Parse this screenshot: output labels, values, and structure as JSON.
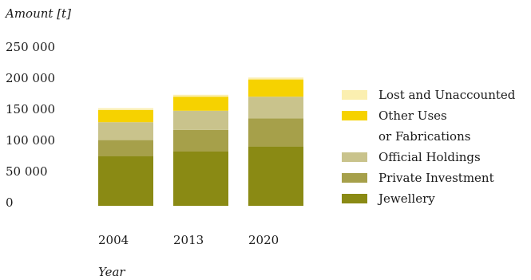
{
  "chart_data": {
    "type": "bar",
    "stacked": true,
    "ylabel": "Amount [t]",
    "xlabel": "Year",
    "categories": [
      "2004",
      "2013",
      "2020"
    ],
    "yticks": [
      "250 000",
      "200 000",
      "150 000",
      "100 000",
      "50 000",
      "0"
    ],
    "ytick_values": [
      250000,
      200000,
      150000,
      100000,
      50000,
      0
    ],
    "ylim": [
      0,
      250000
    ],
    "grid": false,
    "legend_position": "right",
    "series": [
      {
        "name": "Jewellery",
        "color": "#8a8a14",
        "values": [
          78000,
          85000,
          93000
        ]
      },
      {
        "name": "Private Investment",
        "color": "#a6a04a",
        "values": [
          25000,
          34000,
          44000
        ]
      },
      {
        "name": "Official Holdings",
        "color": "#c9c38c",
        "values": [
          28000,
          30000,
          34000
        ]
      },
      {
        "name": "Other Uses or Fabrications",
        "color": "#f6d200",
        "values": [
          19000,
          22000,
          27000
        ]
      },
      {
        "name": "Lost and Unaccounted",
        "color": "#fbefb0",
        "values": [
          3000,
          3000,
          3000
        ]
      }
    ],
    "legend": [
      {
        "lines": [
          "Lost and Unaccounted"
        ],
        "color": "#fbefb0"
      },
      {
        "lines": [
          "Other Uses",
          "or Fabrications"
        ],
        "color": "#f6d200"
      },
      {
        "lines": [
          "Official Holdings"
        ],
        "color": "#c9c38c"
      },
      {
        "lines": [
          "Private Investment"
        ],
        "color": "#a6a04a"
      },
      {
        "lines": [
          "Jewellery"
        ],
        "color": "#8a8a14"
      }
    ]
  }
}
